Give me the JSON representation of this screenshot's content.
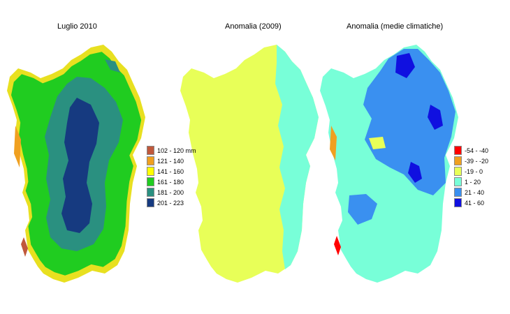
{
  "maps": [
    {
      "title": "Luglio 2010",
      "legend": [
        {
          "label": "102 - 120 mm",
          "color": "#c0583b"
        },
        {
          "label": "121 - 140",
          "color": "#f0a020"
        },
        {
          "label": "141 - 160",
          "color": "#ffff00"
        },
        {
          "label": "161 - 180",
          "color": "#20cc20"
        },
        {
          "label": "181 - 200",
          "color": "#2a9080"
        },
        {
          "label": "201 - 223",
          "color": "#163a80"
        }
      ]
    },
    {
      "title": "Anomalia (2009)",
      "colors": {
        "main": "#e8ff58",
        "east": "#78ffd8"
      }
    },
    {
      "title": "Anomalia (medie climatiche)",
      "legend": [
        {
          "label": "-54 - -40",
          "color": "#ff0000"
        },
        {
          "label": "-39 - -20",
          "color": "#f0a020"
        },
        {
          "label": "-19 - 0",
          "color": "#e8ff58"
        },
        {
          "label": "1 - 20",
          "color": "#78ffd8"
        },
        {
          "label": "21 - 40",
          "color": "#3a90f0"
        },
        {
          "label": "41 - 60",
          "color": "#1010e0"
        }
      ]
    }
  ]
}
